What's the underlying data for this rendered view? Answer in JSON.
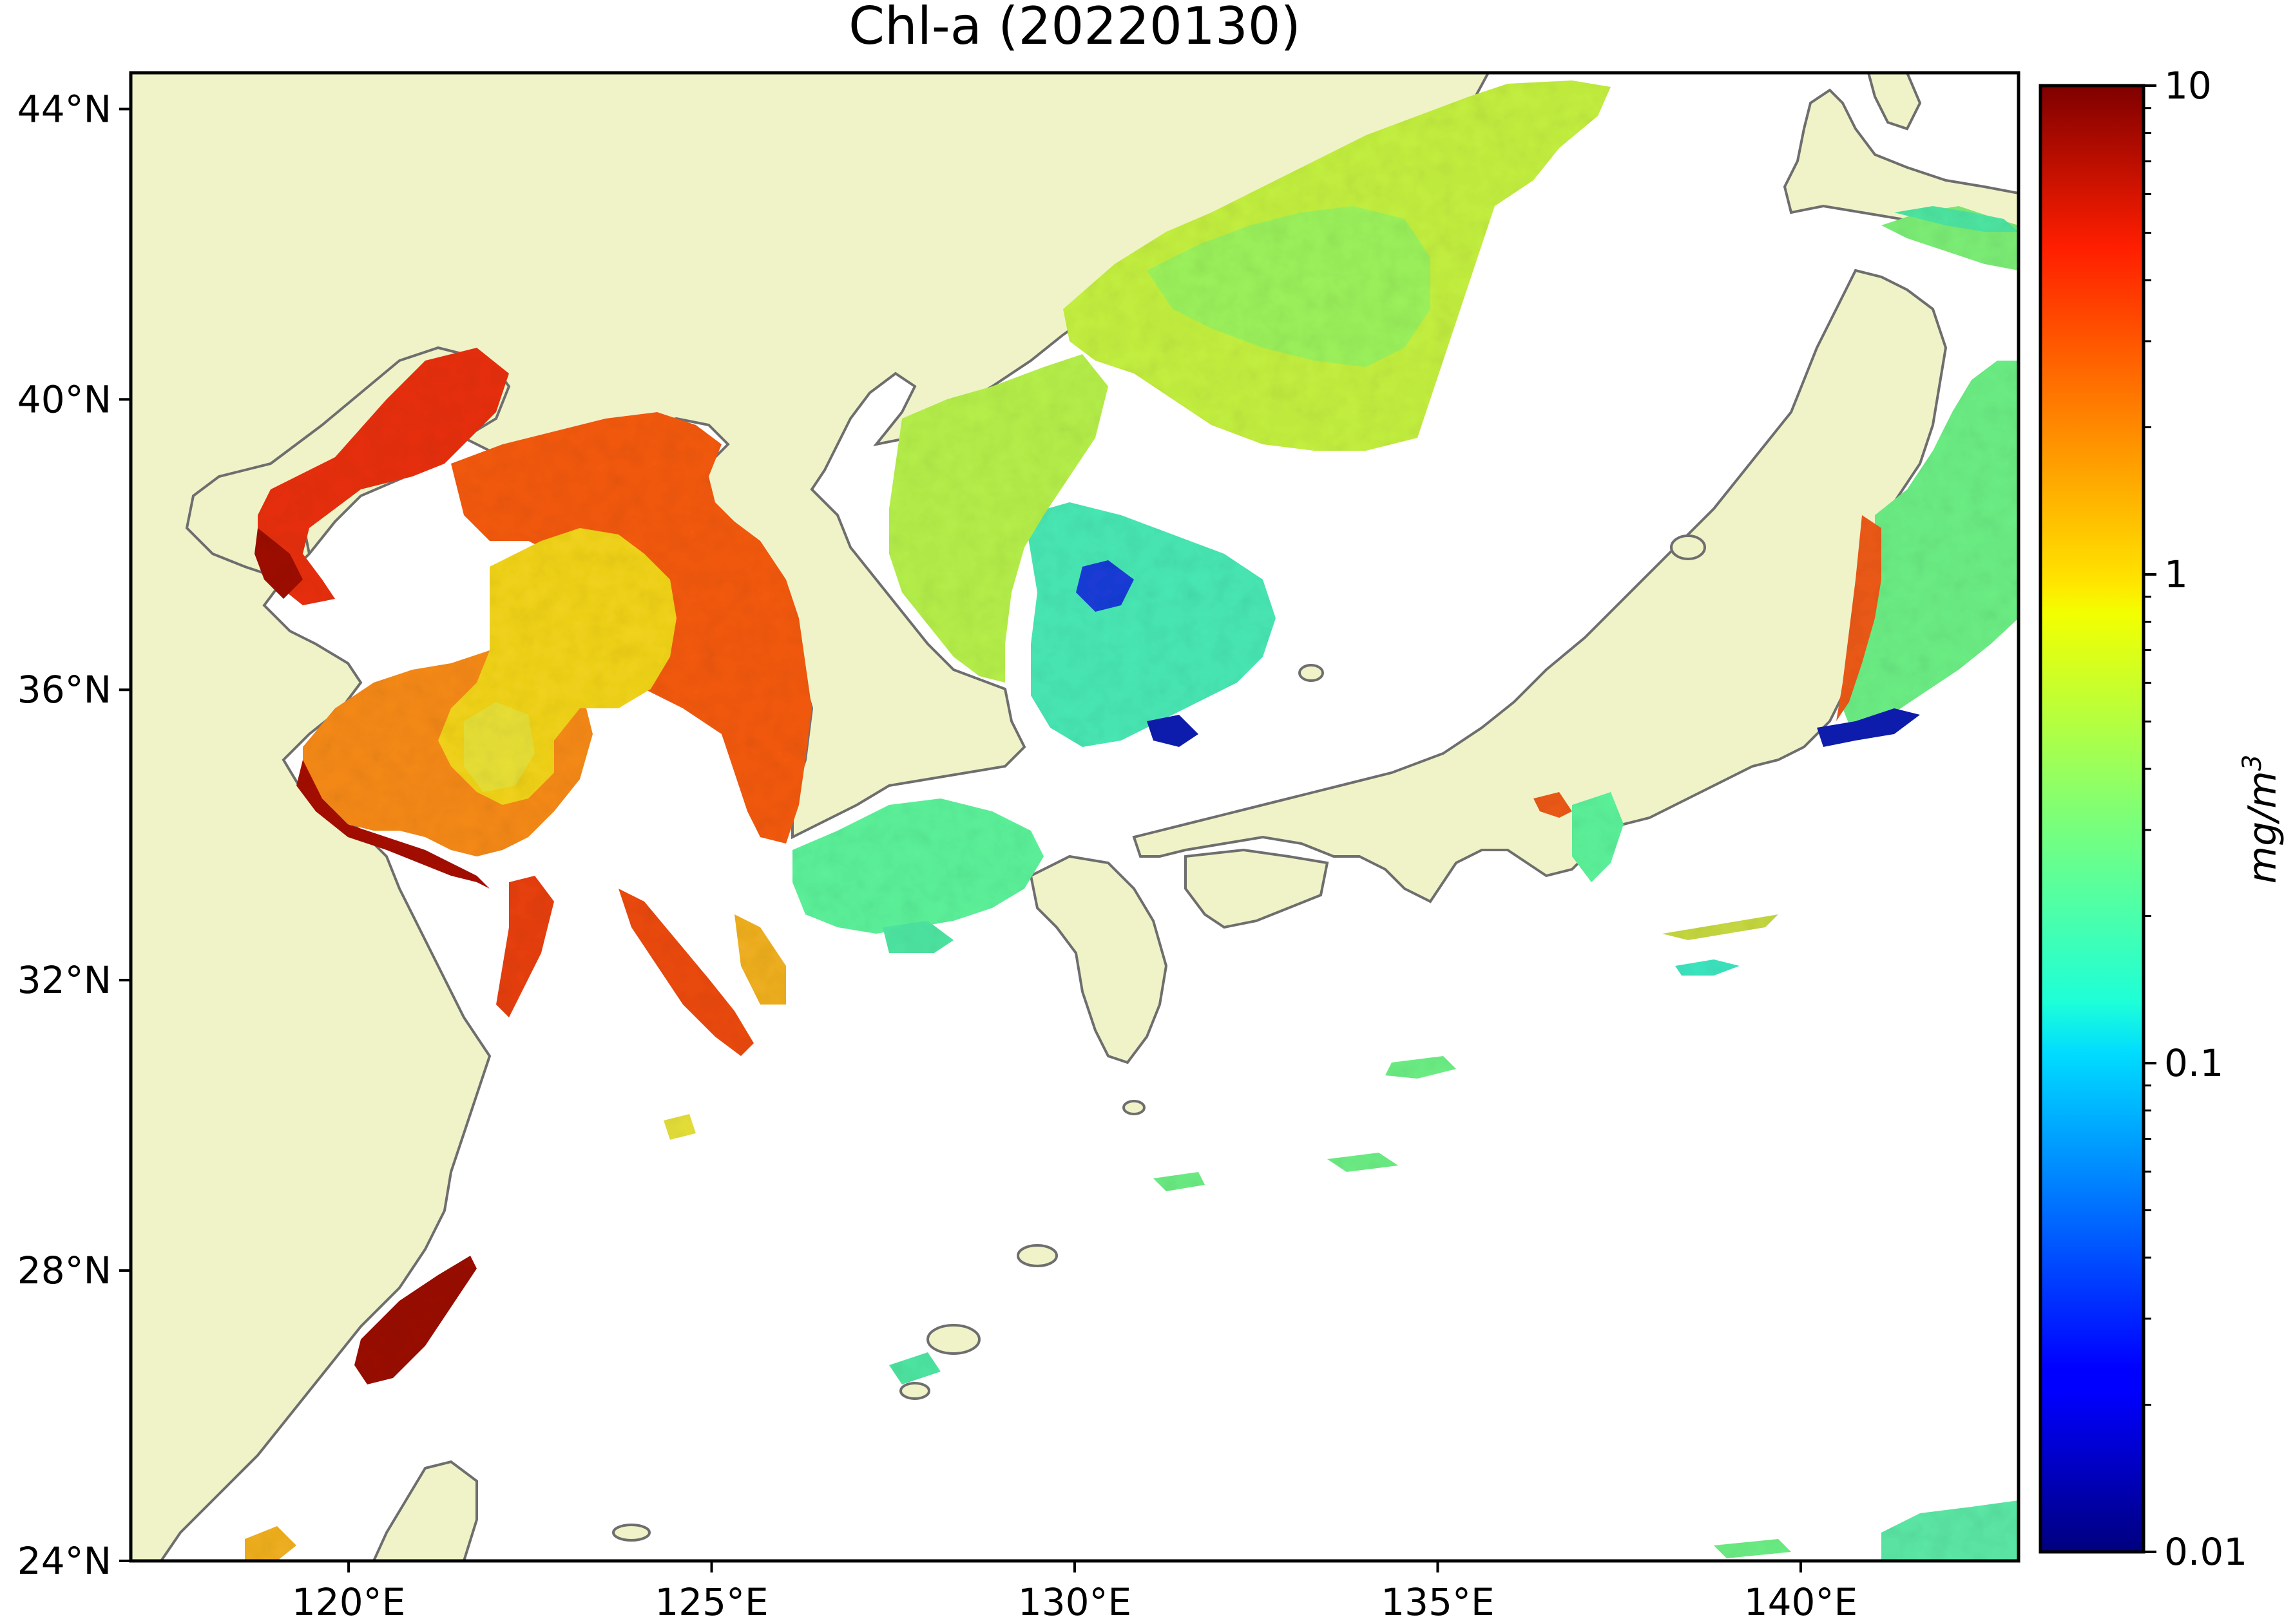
{
  "title": "Chl-a (20220130)",
  "map": {
    "lon_range": [
      117,
      143
    ],
    "lat_range": [
      24,
      44.5
    ],
    "lon_ticks": [
      {
        "value": 120,
        "label": "120°E"
      },
      {
        "value": 125,
        "label": "125°E"
      },
      {
        "value": 130,
        "label": "130°E"
      },
      {
        "value": 135,
        "label": "135°E"
      },
      {
        "value": 140,
        "label": "140°E"
      }
    ],
    "lat_ticks": [
      {
        "value": 24,
        "label": "24°N"
      },
      {
        "value": 28,
        "label": "28°N"
      },
      {
        "value": 32,
        "label": "32°N"
      },
      {
        "value": 36,
        "label": "36°N"
      },
      {
        "value": 40,
        "label": "40°N"
      },
      {
        "value": 44,
        "label": "44°N"
      }
    ],
    "colors": {
      "land": "#f0f3c8",
      "coastline": "#6e6e6e",
      "no_data": "#ffffff"
    }
  },
  "colorbar": {
    "label_prefix": "mg/m",
    "label_exp": "3",
    "scale": "log",
    "range": [
      0.01,
      10
    ],
    "ticks": [
      {
        "value": 10,
        "label": "10"
      },
      {
        "value": 1,
        "label": "1"
      },
      {
        "value": 0.1,
        "label": "0.1"
      },
      {
        "value": 0.01,
        "label": "0.01"
      }
    ],
    "colormap": "jet"
  }
}
